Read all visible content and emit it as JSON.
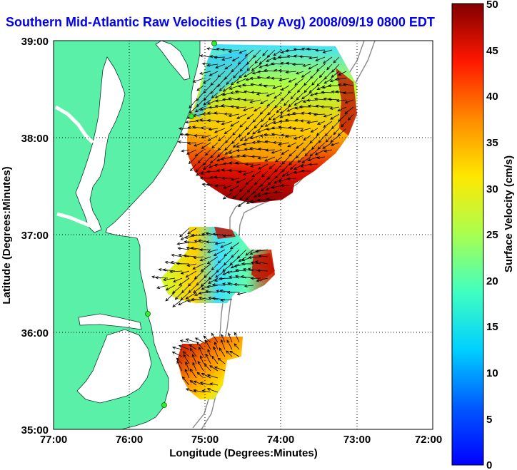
{
  "title": "Southern Mid-Atlantic Raw Velocities (1 Day Avg) 2008/09/19 0800 EDT",
  "map": {
    "x_axis": {
      "label": "Longitude (Degrees:Minutes)",
      "ticks": [
        "77:00",
        "76:00",
        "75:00",
        "74:00",
        "73:00",
        "72:00"
      ]
    },
    "y_axis": {
      "label": "Latitude (Degrees:Minutes)",
      "ticks": [
        "39:00",
        "38:00",
        "37:00",
        "36:00",
        "35:00"
      ]
    },
    "land_color": "#5af0a8",
    "grid": "dotted"
  },
  "colorbar": {
    "label": "Surface Velocity (cm/s)",
    "min": 0,
    "max": 50,
    "ticks": [
      "50",
      "45",
      "40",
      "35",
      "30",
      "25",
      "20",
      "15",
      "10",
      "5",
      "0"
    ],
    "colormap": "jet"
  }
}
